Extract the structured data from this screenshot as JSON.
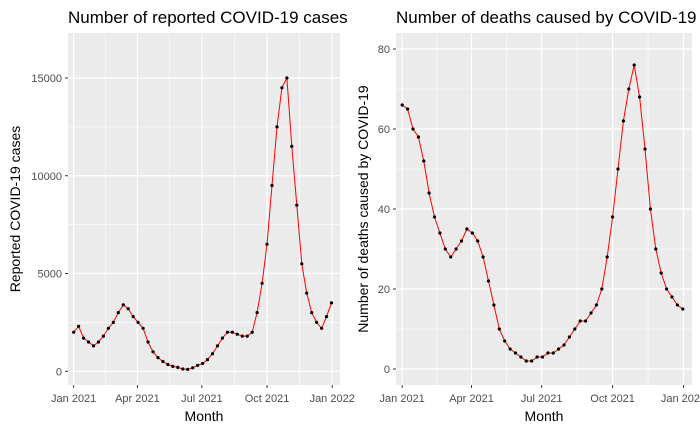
{
  "chart_data": [
    {
      "type": "line",
      "title": "Number of reported COVID-19 cases",
      "xlabel": "Month",
      "ylabel": "Reported COVID-19 cases",
      "x_ticks": [
        "Jan 2021",
        "Apr 2021",
        "Jul 2021",
        "Oct 2021",
        "Jan 2022"
      ],
      "y_ticks": [
        "0",
        "5000",
        "10000",
        "15000"
      ],
      "ylim": [
        -700,
        17300
      ],
      "grid": true,
      "point_color": "#000000",
      "line_color": "#ff0000",
      "series": [
        {
          "x": [
            "2021-01-01",
            "2021-01-08",
            "2021-01-15",
            "2021-01-22",
            "2021-01-29",
            "2021-02-05",
            "2021-02-12",
            "2021-02-19",
            "2021-02-26",
            "2021-03-05",
            "2021-03-12",
            "2021-03-19",
            "2021-03-26",
            "2021-04-02",
            "2021-04-09",
            "2021-04-16",
            "2021-04-23",
            "2021-04-30",
            "2021-05-07",
            "2021-05-14",
            "2021-05-21",
            "2021-05-28",
            "2021-06-04",
            "2021-06-11",
            "2021-06-18",
            "2021-06-25",
            "2021-07-02",
            "2021-07-09",
            "2021-07-16",
            "2021-07-23",
            "2021-07-30",
            "2021-08-06",
            "2021-08-13",
            "2021-08-20",
            "2021-08-27",
            "2021-09-03",
            "2021-09-10",
            "2021-09-17",
            "2021-09-24",
            "2021-10-01",
            "2021-10-08",
            "2021-10-15",
            "2021-10-22",
            "2021-10-29",
            "2021-11-05",
            "2021-11-12",
            "2021-11-19",
            "2021-11-26",
            "2021-12-03",
            "2021-12-10",
            "2021-12-17",
            "2021-12-24",
            "2021-12-31"
          ],
          "values": [
            2000,
            2300,
            1700,
            1500,
            1300,
            1500,
            1800,
            2200,
            2500,
            3000,
            3400,
            3200,
            2800,
            2500,
            2200,
            1500,
            1000,
            700,
            500,
            350,
            250,
            200,
            120,
            100,
            180,
            300,
            400,
            600,
            900,
            1300,
            1700,
            2000,
            2000,
            1900,
            1800,
            1800,
            2000,
            3000,
            4500,
            6500,
            9500,
            12500,
            14500,
            15000,
            11500,
            8500,
            5500,
            4000,
            3000,
            2500,
            2200,
            2800,
            3500
          ]
        }
      ]
    },
    {
      "type": "line",
      "title": "Number of deaths caused by COVID-19",
      "xlabel": "Month",
      "ylabel": "Number of deaths caused by COVID-19",
      "x_ticks": [
        "Jan 2021",
        "Apr 2021",
        "Jul 2021",
        "Oct 2021",
        "Jan 2022"
      ],
      "y_ticks": [
        "0",
        "20",
        "40",
        "60",
        "80"
      ],
      "ylim": [
        -4,
        84
      ],
      "grid": true,
      "point_color": "#000000",
      "line_color": "#ff0000",
      "series": [
        {
          "x": [
            "2021-01-01",
            "2021-01-08",
            "2021-01-15",
            "2021-01-22",
            "2021-01-29",
            "2021-02-05",
            "2021-02-12",
            "2021-02-19",
            "2021-02-26",
            "2021-03-05",
            "2021-03-12",
            "2021-03-19",
            "2021-03-26",
            "2021-04-02",
            "2021-04-09",
            "2021-04-16",
            "2021-04-23",
            "2021-04-30",
            "2021-05-07",
            "2021-05-14",
            "2021-05-21",
            "2021-05-28",
            "2021-06-04",
            "2021-06-11",
            "2021-06-18",
            "2021-06-25",
            "2021-07-02",
            "2021-07-09",
            "2021-07-16",
            "2021-07-23",
            "2021-07-30",
            "2021-08-06",
            "2021-08-13",
            "2021-08-20",
            "2021-08-27",
            "2021-09-03",
            "2021-09-10",
            "2021-09-17",
            "2021-09-24",
            "2021-10-01",
            "2021-10-08",
            "2021-10-15",
            "2021-10-22",
            "2021-10-29",
            "2021-11-05",
            "2021-11-12",
            "2021-11-19",
            "2021-11-26",
            "2021-12-03",
            "2021-12-10",
            "2021-12-17",
            "2021-12-24",
            "2021-12-31"
          ],
          "values": [
            66,
            65,
            60,
            58,
            52,
            44,
            38,
            34,
            30,
            28,
            30,
            32,
            35,
            34,
            32,
            28,
            22,
            16,
            10,
            7,
            5,
            4,
            3,
            2,
            2,
            3,
            3,
            4,
            4,
            5,
            6,
            8,
            10,
            12,
            12,
            14,
            16,
            20,
            28,
            38,
            50,
            62,
            70,
            76,
            68,
            55,
            40,
            30,
            24,
            20,
            18,
            16,
            15
          ]
        }
      ]
    }
  ]
}
